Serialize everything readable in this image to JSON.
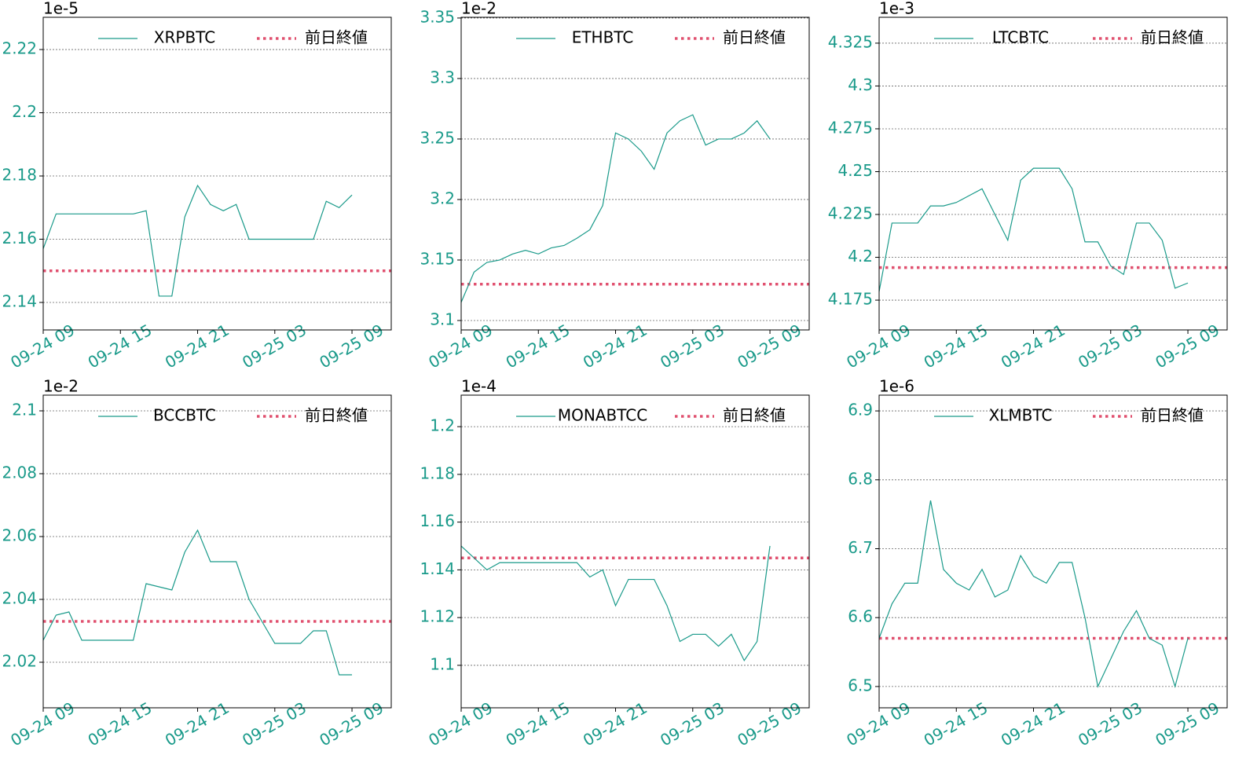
{
  "chart_data": [
    {
      "type": "line",
      "y_offset_label": "1e-5",
      "ylim": [
        2.1313,
        2.2302
      ],
      "yticks": [
        2.14,
        2.16,
        2.18,
        2.2,
        2.22
      ],
      "grid": true,
      "legend": "upper right",
      "step": false,
      "tick_label_color": "#1a9a8a",
      "x": [
        "09-24 09",
        "09-24 10",
        "09-24 11",
        "09-24 12",
        "09-24 13",
        "09-24 14",
        "09-24 15",
        "09-24 16",
        "09-24 17",
        "09-24 18",
        "09-24 19",
        "09-24 20",
        "09-24 21",
        "09-24 22",
        "09-24 23",
        "09-25 00",
        "09-25 01",
        "09-25 02",
        "09-25 03",
        "09-25 04",
        "09-25 05",
        "09-25 06",
        "09-25 07",
        "09-25 08",
        "09-25 09"
      ],
      "xticks": [
        "09-24 09",
        "09-24 15",
        "09-24 21",
        "09-25 03",
        "09-25 09"
      ],
      "series": [
        {
          "name": "XRPBTC",
          "color": "#1a9a8a",
          "values": [
            2.157,
            2.168,
            2.168,
            2.168,
            2.168,
            2.168,
            2.168,
            2.168,
            2.169,
            2.142,
            2.142,
            2.167,
            2.177,
            2.171,
            2.169,
            2.171,
            2.16,
            2.16,
            2.16,
            2.16,
            2.16,
            2.16,
            2.172,
            2.17,
            2.174
          ]
        }
      ],
      "reference": {
        "name": "前日終値",
        "value": 2.15,
        "color": "#e0506f"
      }
    },
    {
      "type": "line",
      "y_offset_label": "1e-2",
      "ylim": [
        3.0922,
        3.3506
      ],
      "yticks": [
        3.1,
        3.15,
        3.2,
        3.25,
        3.3,
        3.35
      ],
      "grid": true,
      "legend": "upper right",
      "step": false,
      "tick_label_color": "#1a9a8a",
      "x": [
        "09-24 09",
        "09-24 10",
        "09-24 11",
        "09-24 12",
        "09-24 13",
        "09-24 14",
        "09-24 15",
        "09-24 16",
        "09-24 17",
        "09-24 18",
        "09-24 19",
        "09-24 20",
        "09-24 21",
        "09-24 22",
        "09-24 23",
        "09-25 00",
        "09-25 01",
        "09-25 02",
        "09-25 03",
        "09-25 04",
        "09-25 05",
        "09-25 06",
        "09-25 07",
        "09-25 08",
        "09-25 09"
      ],
      "xticks": [
        "09-24 09",
        "09-24 15",
        "09-24 21",
        "09-25 03",
        "09-25 09"
      ],
      "series": [
        {
          "name": "ETHBTC",
          "color": "#1a9a8a",
          "values": [
            3.115,
            3.14,
            3.148,
            3.15,
            3.155,
            3.158,
            3.155,
            3.16,
            3.162,
            3.168,
            3.175,
            3.195,
            3.255,
            3.25,
            3.24,
            3.225,
            3.255,
            3.265,
            3.27,
            3.245,
            3.25,
            3.25,
            3.255,
            3.265,
            3.25
          ]
        }
      ],
      "reference": {
        "name": "前日終値",
        "value": 3.13,
        "color": "#e0506f"
      }
    },
    {
      "type": "line",
      "y_offset_label": "1e-3",
      "ylim": [
        4.1576,
        4.3401
      ],
      "yticks": [
        4.175,
        4.2,
        4.225,
        4.25,
        4.275,
        4.3,
        4.325
      ],
      "grid": true,
      "legend": "upper right",
      "step": false,
      "tick_label_color": "#1a9a8a",
      "x": [
        "09-24 09",
        "09-24 10",
        "09-24 11",
        "09-24 12",
        "09-24 13",
        "09-24 14",
        "09-24 15",
        "09-24 16",
        "09-24 17",
        "09-24 18",
        "09-24 19",
        "09-24 20",
        "09-24 21",
        "09-24 22",
        "09-24 23",
        "09-25 00",
        "09-25 01",
        "09-25 02",
        "09-25 03",
        "09-25 04",
        "09-25 05",
        "09-25 06",
        "09-25 07",
        "09-25 08",
        "09-25 09"
      ],
      "xticks": [
        "09-24 09",
        "09-24 15",
        "09-24 21",
        "09-25 03",
        "09-25 09"
      ],
      "series": [
        {
          "name": "LTCBTC",
          "color": "#1a9a8a",
          "values": [
            4.18,
            4.22,
            4.22,
            4.22,
            4.23,
            4.23,
            4.232,
            4.236,
            4.24,
            4.225,
            4.21,
            4.245,
            4.252,
            4.252,
            4.252,
            4.24,
            4.209,
            4.209,
            4.195,
            4.19,
            4.22,
            4.22,
            4.21,
            4.182,
            4.185
          ]
        }
      ],
      "reference": {
        "name": "前日終値",
        "value": 4.194,
        "color": "#e0506f"
      }
    },
    {
      "type": "line",
      "y_offset_label": "1e-2",
      "ylim": [
        2.0055,
        2.105
      ],
      "yticks": [
        2.02,
        2.04,
        2.06,
        2.08,
        2.1
      ],
      "grid": true,
      "legend": "upper right",
      "step": false,
      "tick_label_color": "#1a9a8a",
      "x": [
        "09-24 09",
        "09-24 10",
        "09-24 11",
        "09-24 12",
        "09-24 13",
        "09-24 14",
        "09-24 15",
        "09-24 16",
        "09-24 17",
        "09-24 18",
        "09-24 19",
        "09-24 20",
        "09-24 21",
        "09-24 22",
        "09-24 23",
        "09-25 00",
        "09-25 01",
        "09-25 02",
        "09-25 03",
        "09-25 04",
        "09-25 05",
        "09-25 06",
        "09-25 07",
        "09-25 08",
        "09-25 09"
      ],
      "xticks": [
        "09-24 09",
        "09-24 15",
        "09-24 21",
        "09-25 03",
        "09-25 09"
      ],
      "series": [
        {
          "name": "BCCBTC",
          "color": "#1a9a8a",
          "values": [
            2.027,
            2.035,
            2.036,
            2.027,
            2.027,
            2.027,
            2.027,
            2.027,
            2.045,
            2.044,
            2.043,
            2.055,
            2.062,
            2.052,
            2.052,
            2.052,
            2.04,
            2.033,
            2.026,
            2.026,
            2.026,
            2.03,
            2.03,
            2.016,
            2.016
          ]
        }
      ],
      "reference": {
        "name": "前日終値",
        "value": 2.033,
        "color": "#e0506f"
      }
    },
    {
      "type": "line",
      "y_offset_label": "1e-4",
      "ylim": [
        1.0822,
        1.2132
      ],
      "yticks": [
        1.1,
        1.12,
        1.14,
        1.16,
        1.18,
        1.2
      ],
      "grid": true,
      "legend": "upper right",
      "step": false,
      "tick_label_color": "#1a9a8a",
      "x": [
        "09-24 09",
        "09-24 10",
        "09-24 11",
        "09-24 12",
        "09-24 13",
        "09-24 14",
        "09-24 15",
        "09-24 16",
        "09-24 17",
        "09-24 18",
        "09-24 19",
        "09-24 20",
        "09-24 21",
        "09-24 22",
        "09-24 23",
        "09-25 00",
        "09-25 01",
        "09-25 02",
        "09-25 03",
        "09-25 04",
        "09-25 05",
        "09-25 06",
        "09-25 07",
        "09-25 08",
        "09-25 09"
      ],
      "xticks": [
        "09-24 09",
        "09-24 15",
        "09-24 21",
        "09-25 03",
        "09-25 09"
      ],
      "series": [
        {
          "name": "MONABTCC",
          "color": "#1a9a8a",
          "values": [
            1.15,
            1.145,
            1.14,
            1.143,
            1.143,
            1.143,
            1.143,
            1.143,
            1.143,
            1.143,
            1.137,
            1.14,
            1.125,
            1.136,
            1.136,
            1.136,
            1.125,
            1.11,
            1.113,
            1.113,
            1.108,
            1.113,
            1.102,
            1.11,
            1.15
          ]
        }
      ],
      "reference": {
        "name": "前日終値",
        "value": 1.145,
        "color": "#e0506f"
      }
    },
    {
      "type": "line",
      "y_offset_label": "1e-6",
      "ylim": [
        6.4691,
        6.9229
      ],
      "yticks": [
        6.5,
        6.6,
        6.7,
        6.8,
        6.9
      ],
      "grid": true,
      "legend": "upper right",
      "step": false,
      "tick_label_color": "#1a9a8a",
      "x": [
        "09-24 09",
        "09-24 10",
        "09-24 11",
        "09-24 12",
        "09-24 13",
        "09-24 14",
        "09-24 15",
        "09-24 16",
        "09-24 17",
        "09-24 18",
        "09-24 19",
        "09-24 20",
        "09-24 21",
        "09-24 22",
        "09-24 23",
        "09-25 00",
        "09-25 01",
        "09-25 02",
        "09-25 03",
        "09-25 04",
        "09-25 05",
        "09-25 06",
        "09-25 07",
        "09-25 08",
        "09-25 09"
      ],
      "xticks": [
        "09-24 09",
        "09-24 15",
        "09-24 21",
        "09-25 03",
        "09-25 09"
      ],
      "series": [
        {
          "name": "XLMBTC",
          "color": "#1a9a8a",
          "values": [
            6.57,
            6.62,
            6.65,
            6.65,
            6.77,
            6.67,
            6.65,
            6.64,
            6.67,
            6.63,
            6.64,
            6.69,
            6.66,
            6.65,
            6.68,
            6.68,
            6.6,
            6.5,
            6.54,
            6.58,
            6.61,
            6.57,
            6.56,
            6.5,
            6.57
          ]
        }
      ],
      "reference": {
        "name": "前日終値",
        "value": 6.57,
        "color": "#e0506f"
      }
    }
  ]
}
